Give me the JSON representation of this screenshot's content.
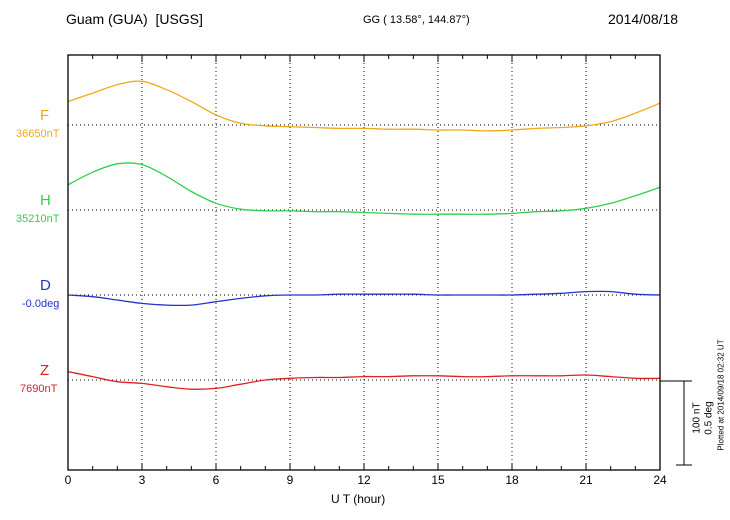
{
  "header": {
    "station": "Guam (GUA)  [USGS]",
    "coords": "GG ( 13.58°, 144.87°)",
    "date": "2014/08/18"
  },
  "xlabel": "U T (hour)",
  "scale_bar": {
    "nt_label": "100 nT",
    "deg_label": "0.5 deg"
  },
  "plotted_note": "Plotted at 2014/09/18 02:32 UT",
  "chart_data": {
    "type": "line",
    "title": "Guam (GUA) [USGS] magnetogram 2014/08/18",
    "xlabel": "U T (hour)",
    "xlim": [
      0,
      24
    ],
    "x_ticks": [
      0,
      3,
      6,
      9,
      12,
      15,
      18,
      21,
      24
    ],
    "x": [
      0,
      1,
      2,
      3,
      4,
      5,
      6,
      7,
      8,
      9,
      10,
      11,
      12,
      13,
      14,
      15,
      16,
      17,
      18,
      19,
      20,
      21,
      22,
      23,
      24
    ],
    "grid": "dotted vertical lines every 3 hours; dotted horizontal baseline per trace",
    "legend_position": "left-of-plot trace labels",
    "scale_reference": {
      "nT": 100,
      "deg": 0.5
    },
    "series": [
      {
        "id": "F",
        "label": "F",
        "unit": "nT",
        "baseline_label": "36650nT",
        "baseline_value": 36650,
        "color": "#f0a818",
        "offsets": [
          28,
          38,
          48,
          52,
          42,
          28,
          12,
          2,
          -1,
          -2,
          -3,
          -4,
          -4,
          -5,
          -5,
          -6,
          -6,
          -7,
          -6,
          -4,
          -3,
          -1,
          4,
          14,
          26
        ]
      },
      {
        "id": "H",
        "label": "H",
        "unit": "nT",
        "baseline_label": "35210nT",
        "baseline_value": 35210,
        "color": "#2ed04e",
        "offsets": [
          30,
          45,
          55,
          54,
          40,
          22,
          8,
          1,
          -1,
          -1,
          -2,
          -2,
          -3,
          -4,
          -5,
          -5,
          -5,
          -5,
          -4,
          -2,
          -1,
          2,
          8,
          17,
          27
        ]
      },
      {
        "id": "D",
        "label": "D",
        "unit": "deg",
        "baseline_label": "-0.0deg",
        "baseline_value": 0.0,
        "color": "#2233cc",
        "offsets": [
          0,
          -0.01,
          -0.03,
          -0.05,
          -0.06,
          -0.06,
          -0.04,
          -0.02,
          -0.005,
          0,
          0,
          0.005,
          0.005,
          0.005,
          0.005,
          0,
          0,
          0,
          0,
          0.005,
          0.01,
          0.02,
          0.02,
          0.005,
          0
        ]
      },
      {
        "id": "Z",
        "label": "Z",
        "unit": "nT",
        "baseline_label": "7690nT",
        "baseline_value": 7690,
        "color": "#e02020",
        "offsets": [
          10,
          4,
          -2,
          -4,
          -8,
          -11,
          -10,
          -5,
          0,
          2,
          3,
          3,
          4,
          4,
          5,
          5,
          4,
          4,
          5,
          5,
          5,
          6,
          4,
          2,
          2
        ]
      }
    ]
  }
}
